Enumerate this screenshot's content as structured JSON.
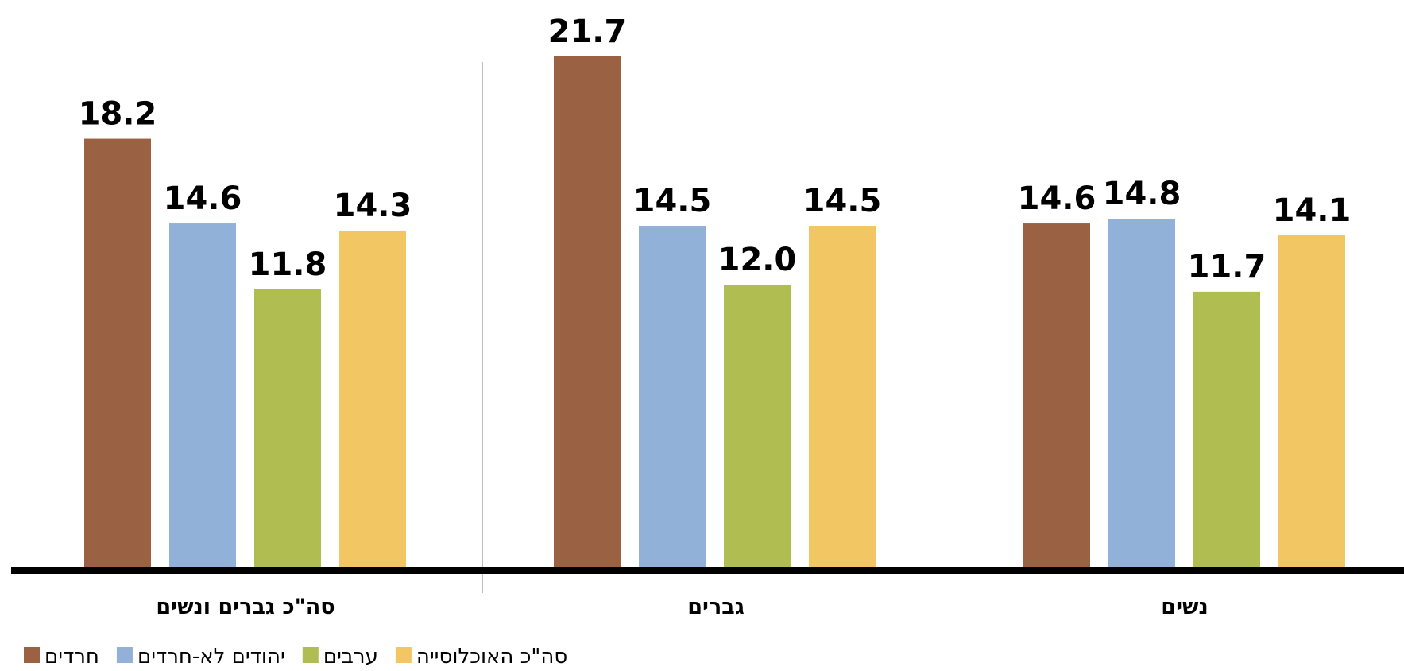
{
  "chart_data": {
    "type": "bar",
    "categories": [
      "סה\"כ גברים ונשים",
      "גברים",
      "נשים"
    ],
    "series": [
      {
        "name": "חרדים",
        "color": "#9b6143",
        "values": [
          18.2,
          21.7,
          14.6
        ]
      },
      {
        "name": "יהודים לא-חרדים",
        "color": "#91b1d8",
        "values": [
          14.6,
          14.5,
          14.8
        ]
      },
      {
        "name": "ערבים",
        "color": "#afbd51",
        "values": [
          11.8,
          12.0,
          11.7
        ]
      },
      {
        "name": "סה\"כ האוכלוסייה",
        "color": "#f1c663",
        "values": [
          14.3,
          14.5,
          14.1
        ]
      }
    ],
    "ylim": [
      0,
      21.7
    ],
    "data_labels": true,
    "grid": false,
    "legend_position": "bottom-left",
    "xlabel": "",
    "ylabel": "",
    "title": ""
  }
}
